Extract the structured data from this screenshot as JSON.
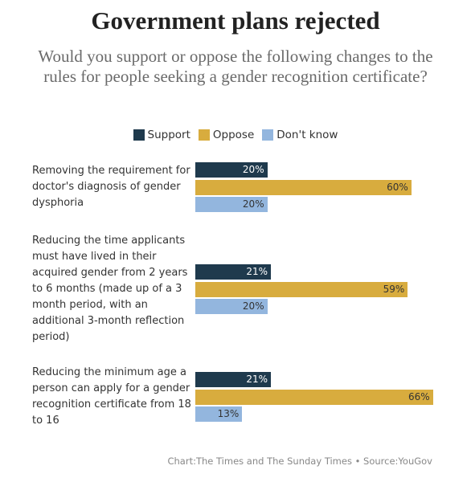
{
  "chart_data": {
    "type": "bar",
    "orientation": "horizontal",
    "title": "Government plans rejected",
    "subtitle": "Would you support or oppose the following changes to the rules for people seeking a gender recognition certificate?",
    "categories": [
      "Removing the requirement for doctor's diagnosis of gender dysphoria",
      "Reducing the time applicants must have lived in their acquired gender from 2 years to 6 months (made up of a 3 month period, with an additional 3-month reflection period)",
      "Reducing the minimum age a person can apply for a gender recognition certificate from 18 to 16"
    ],
    "series": [
      {
        "name": "Support",
        "color": "#1f3a4d",
        "values": [
          20,
          21,
          21
        ],
        "value_labels": [
          "20%",
          "21%",
          "21%"
        ]
      },
      {
        "name": "Oppose",
        "color": "#d8ac3e",
        "values": [
          60,
          59,
          66
        ],
        "value_labels": [
          "60%",
          "59%",
          "66%"
        ]
      },
      {
        "name": "Don't know",
        "color": "#93b6de",
        "values": [
          20,
          20,
          13
        ],
        "value_labels": [
          "20%",
          "20%",
          "13%"
        ]
      }
    ],
    "source": "Chart:The Times and The Sunday Times • Source:YouGov"
  }
}
